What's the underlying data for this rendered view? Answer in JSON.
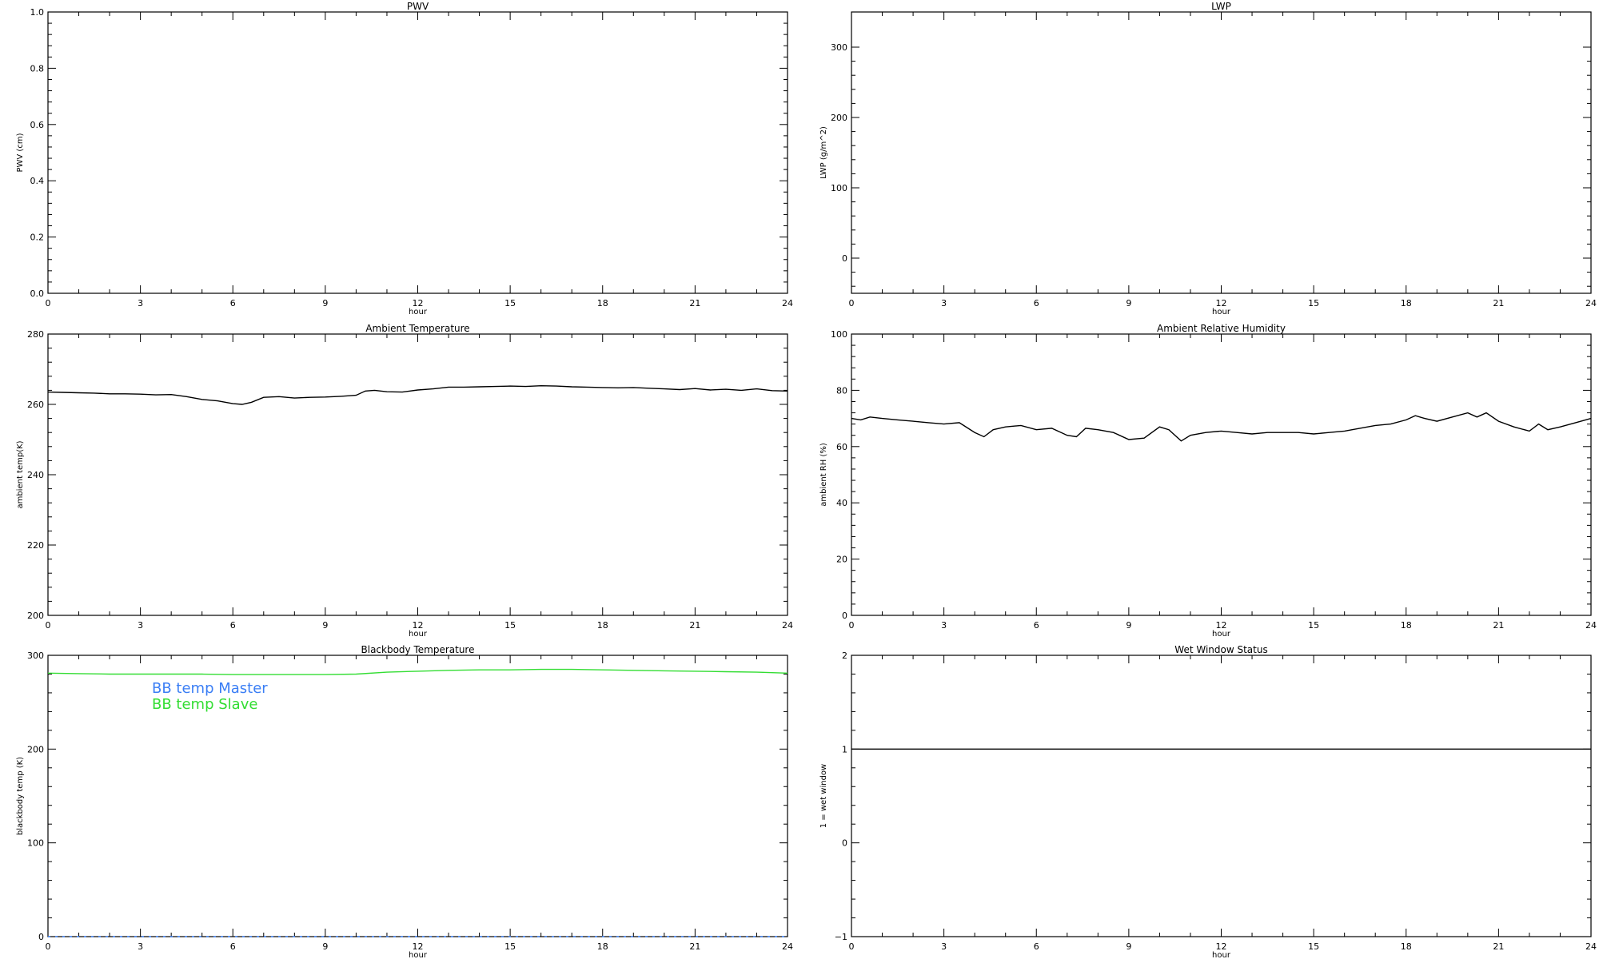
{
  "chart_data": [
    {
      "type": "line",
      "title": "PWV",
      "xlabel": "hour",
      "ylabel": "PWV (cm)",
      "xlim": [
        0,
        24
      ],
      "ylim": [
        0,
        1
      ],
      "x_ticks": [
        0,
        3,
        6,
        9,
        12,
        15,
        18,
        21,
        24
      ],
      "y_ticks": [
        0.0,
        0.2,
        0.4,
        0.6,
        0.8,
        1.0
      ],
      "y_tick_labels": [
        "0.0",
        "0.2",
        "0.4",
        "0.6",
        "0.8",
        "1.0"
      ],
      "series": []
    },
    {
      "type": "line",
      "title": "LWP",
      "xlabel": "hour",
      "ylabel": "LWP (g/m^2)",
      "xlim": [
        0,
        24
      ],
      "ylim": [
        -50,
        350
      ],
      "x_ticks": [
        0,
        3,
        6,
        9,
        12,
        15,
        18,
        21,
        24
      ],
      "y_ticks": [
        0,
        100,
        200,
        300
      ],
      "y_tick_labels": [
        "0",
        "100",
        "200",
        "300"
      ],
      "series": []
    },
    {
      "type": "line",
      "title": "Ambient Temperature",
      "xlabel": "hour",
      "ylabel": "ambient temp(K)",
      "xlim": [
        0,
        24
      ],
      "ylim": [
        200,
        280
      ],
      "x_ticks": [
        0,
        3,
        6,
        9,
        12,
        15,
        18,
        21,
        24
      ],
      "y_ticks": [
        200,
        220,
        240,
        260,
        280
      ],
      "y_tick_labels": [
        "200",
        "220",
        "240",
        "260",
        "280"
      ],
      "series": [
        {
          "color": "#000000",
          "x": [
            0,
            0.5,
            1,
            1.5,
            2,
            2.5,
            3,
            3.5,
            4,
            4.5,
            5,
            5.5,
            6,
            6.3,
            6.6,
            7,
            7.5,
            8,
            8.5,
            9,
            9.5,
            10,
            10.3,
            10.6,
            11,
            11.5,
            12,
            12.5,
            13,
            13.5,
            14,
            14.5,
            15,
            15.5,
            16,
            16.5,
            17,
            17.5,
            18,
            18.5,
            19,
            19.5,
            20,
            20.5,
            21,
            21.5,
            22,
            22.5,
            23,
            23.5,
            24
          ],
          "values": [
            263.5,
            263.4,
            263.3,
            263.2,
            263.0,
            263.0,
            262.9,
            262.7,
            262.8,
            262.2,
            261.4,
            261.0,
            260.2,
            260.0,
            260.6,
            262.0,
            262.2,
            261.8,
            262.0,
            262.1,
            262.3,
            262.6,
            263.8,
            264.0,
            263.6,
            263.5,
            264.1,
            264.4,
            264.9,
            264.9,
            265.0,
            265.1,
            265.2,
            265.1,
            265.3,
            265.2,
            265.0,
            264.9,
            264.8,
            264.7,
            264.8,
            264.6,
            264.4,
            264.2,
            264.5,
            264.1,
            264.3,
            264.0,
            264.4,
            263.9,
            263.8
          ]
        }
      ]
    },
    {
      "type": "line",
      "title": "Ambient Relative Humidity",
      "xlabel": "hour",
      "ylabel": "ambient RH (%)",
      "xlim": [
        0,
        24
      ],
      "ylim": [
        0,
        100
      ],
      "x_ticks": [
        0,
        3,
        6,
        9,
        12,
        15,
        18,
        21,
        24
      ],
      "y_ticks": [
        0,
        20,
        40,
        60,
        80,
        100
      ],
      "y_tick_labels": [
        "0",
        "20",
        "40",
        "60",
        "80",
        "100"
      ],
      "series": [
        {
          "color": "#000000",
          "x": [
            0,
            0.3,
            0.6,
            1,
            1.5,
            2,
            2.5,
            3,
            3.5,
            4,
            4.3,
            4.6,
            5,
            5.5,
            6,
            6.5,
            7,
            7.3,
            7.6,
            8,
            8.5,
            9,
            9.5,
            10,
            10.3,
            10.7,
            11,
            11.5,
            12,
            12.5,
            13,
            13.5,
            14,
            14.5,
            15,
            15.5,
            16,
            16.5,
            17,
            17.5,
            18,
            18.3,
            18.6,
            19,
            19.5,
            20,
            20.3,
            20.6,
            21,
            21.5,
            22,
            22.3,
            22.6,
            23,
            23.5,
            24
          ],
          "values": [
            70,
            69.5,
            70.5,
            70,
            69.5,
            69,
            68.5,
            68,
            68.5,
            65,
            63.5,
            66,
            67,
            67.5,
            66,
            66.5,
            64,
            63.5,
            66.5,
            66,
            65,
            62.5,
            63,
            67,
            66,
            62,
            64,
            65,
            65.5,
            65,
            64.5,
            65,
            65,
            65,
            64.5,
            65,
            65.5,
            66.5,
            67.5,
            68,
            69.5,
            71,
            70,
            69,
            70.5,
            72,
            70.5,
            72,
            69,
            67,
            65.5,
            68,
            66,
            67,
            68.5,
            70
          ]
        }
      ]
    },
    {
      "type": "line",
      "title": "Blackbody Temperature",
      "xlabel": "hour",
      "ylabel": "blackbody temp (K)",
      "xlim": [
        0,
        24
      ],
      "ylim": [
        0,
        300
      ],
      "x_ticks": [
        0,
        3,
        6,
        9,
        12,
        15,
        18,
        21,
        24
      ],
      "y_ticks": [
        0,
        100,
        200,
        300
      ],
      "y_tick_labels": [
        "0",
        "100",
        "200",
        "300"
      ],
      "legend": {
        "placement": "top-left",
        "entries": [
          {
            "label": "BB temp Master",
            "color": "#3a7ef5"
          },
          {
            "label": "BB temp Slave",
            "color": "#33dd33"
          }
        ]
      },
      "series": [
        {
          "color": "#3a7ef5",
          "dashed": true,
          "x": [
            0,
            24
          ],
          "values": [
            0,
            0
          ]
        },
        {
          "color": "#33dd33",
          "x": [
            0,
            1,
            2,
            3,
            4,
            5,
            6,
            7,
            8,
            9,
            10,
            11,
            12,
            13,
            14,
            15,
            16,
            17,
            18,
            19,
            20,
            21,
            22,
            23,
            24
          ],
          "values": [
            281,
            280.5,
            280,
            280,
            280,
            280,
            279.5,
            279.5,
            279.5,
            279.5,
            280,
            282,
            283,
            284,
            284.5,
            284.5,
            285,
            285,
            284.5,
            284,
            283.5,
            283,
            282.5,
            282,
            281
          ]
        }
      ]
    },
    {
      "type": "line",
      "title": "Wet Window Status",
      "xlabel": "hour",
      "ylabel": "1 = wet window",
      "xlim": [
        0,
        24
      ],
      "ylim": [
        -1,
        2
      ],
      "x_ticks": [
        0,
        3,
        6,
        9,
        12,
        15,
        18,
        21,
        24
      ],
      "y_ticks": [
        -1,
        0,
        1,
        2
      ],
      "y_tick_labels": [
        "−1",
        "0",
        "1",
        "2"
      ],
      "series": [
        {
          "color": "#000000",
          "x": [
            0,
            24
          ],
          "values": [
            1,
            1
          ]
        }
      ]
    }
  ]
}
